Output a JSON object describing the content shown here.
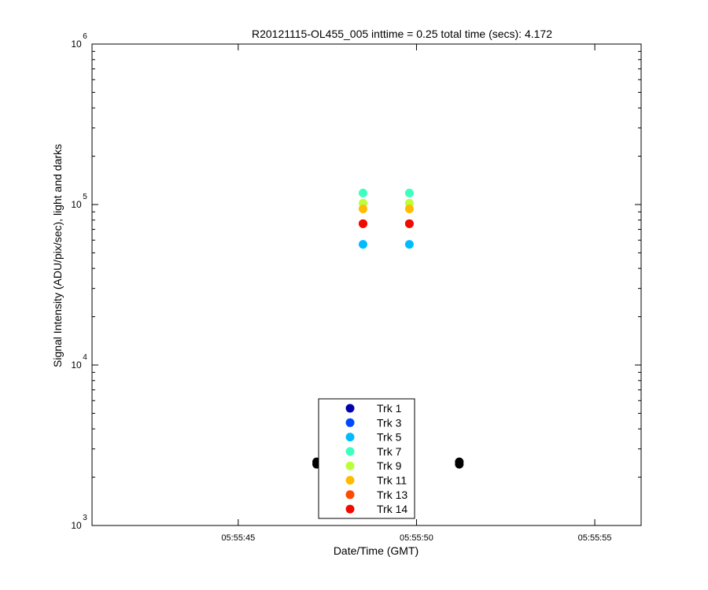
{
  "chart_data": {
    "type": "scatter",
    "title": "R20121115-OL455_005 inttime = 0.25 total time (secs): 4.172",
    "xlabel": "Date/Time (GMT)",
    "ylabel": "Signal Intensity (ADU/pix/sec), light and darks",
    "y_scale": "log",
    "ylim": [
      1000,
      1000000
    ],
    "xlim": [
      "05:55:40.9",
      "05:55:56.3"
    ],
    "x_ticks": [
      "05:55:45",
      "05:55:50",
      "05:55:55"
    ],
    "y_ticks": [
      {
        "base": "10",
        "exp": "3",
        "value": 1000
      },
      {
        "base": "10",
        "exp": "4",
        "value": 10000
      },
      {
        "base": "10",
        "exp": "5",
        "value": 100000
      },
      {
        "base": "10",
        "exp": "6",
        "value": 1000000
      }
    ],
    "grid": false,
    "legend_placement": "bottom-center",
    "series": [
      {
        "name": "Trk 1",
        "color": "#0000b0",
        "points": [
          [
            "05:55:48.5",
            2450
          ],
          [
            "05:55:49.8",
            2450
          ]
        ]
      },
      {
        "name": "Trk 3",
        "color": "#0048ff",
        "points": [
          [
            "05:55:48.5",
            2450
          ],
          [
            "05:55:49.8",
            2450
          ]
        ]
      },
      {
        "name": "Trk 5",
        "color": "#00bcff",
        "points": [
          [
            "05:55:48.5",
            56500
          ],
          [
            "05:55:49.8",
            56500
          ]
        ]
      },
      {
        "name": "Trk 7",
        "color": "#3cffc0",
        "points": [
          [
            "05:55:48.5",
            118000
          ],
          [
            "05:55:49.8",
            118000
          ]
        ]
      },
      {
        "name": "Trk 9",
        "color": "#bbff3a",
        "points": [
          [
            "05:55:48.5",
            102000
          ],
          [
            "05:55:49.8",
            102000
          ]
        ]
      },
      {
        "name": "Trk 11",
        "color": "#ffbb00",
        "points": [
          [
            "05:55:48.5",
            94000
          ],
          [
            "05:55:49.8",
            94000
          ]
        ]
      },
      {
        "name": "Trk 13",
        "color": "#ff4a00",
        "points": [
          [
            "05:55:48.5",
            76000
          ],
          [
            "05:55:49.8",
            76000
          ]
        ]
      },
      {
        "name": "Trk 14",
        "color": "#f00a00",
        "points": [
          [
            "05:55:48.5",
            76000
          ],
          [
            "05:55:49.8",
            76000
          ]
        ]
      }
    ],
    "darks": {
      "color": "#000000",
      "points": [
        [
          "05:55:47.2",
          2450
        ],
        [
          "05:55:51.2",
          2450
        ]
      ]
    }
  }
}
